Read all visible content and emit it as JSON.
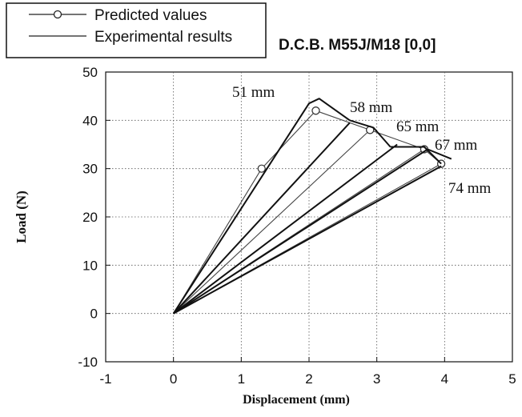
{
  "chart_data": {
    "type": "line",
    "title": "D.C.B. M55J/M18 [0,0]",
    "xlabel": "Displacement (mm)",
    "ylabel": "Load (N)",
    "xlim": [
      -1,
      5
    ],
    "ylim": [
      -10,
      50
    ],
    "x_ticks": [
      "-1",
      "0",
      "1",
      "2",
      "3",
      "4",
      "5"
    ],
    "y_ticks": [
      "-10",
      "0",
      "10",
      "20",
      "30",
      "40",
      "50"
    ],
    "grid": true,
    "legend_position": "top-left",
    "legend": [
      {
        "label": "Predicted values",
        "marker": "open-circle"
      },
      {
        "label": "Experimental results",
        "marker": "none"
      }
    ],
    "annotations": [
      "51 mm",
      "58 mm",
      "65 mm",
      "67 mm",
      "74 mm"
    ],
    "series": [
      {
        "name": "Predicted values",
        "segments": [
          {
            "x": [
              0,
              1.3,
              2.1
            ],
            "y": [
              0,
              30,
              42
            ]
          },
          {
            "x": [
              2.1,
              2.9,
              3.7,
              3.95
            ],
            "y": [
              42,
              38,
              34,
              31
            ]
          },
          {
            "x": [
              0,
              2.9
            ],
            "y": [
              0,
              38
            ]
          },
          {
            "x": [
              0,
              3.7
            ],
            "y": [
              0,
              34
            ]
          },
          {
            "x": [
              0,
              3.95
            ],
            "y": [
              0,
              31
            ]
          }
        ]
      },
      {
        "name": "Experimental results",
        "segments": [
          {
            "x": [
              0,
              2.0,
              2.15,
              2.6
            ],
            "y": [
              0,
              43.5,
              44.5,
              40
            ]
          },
          {
            "x": [
              2.6,
              2.95,
              3.2
            ],
            "y": [
              40,
              38.5,
              34.5
            ]
          },
          {
            "x": [
              0,
              2.6
            ],
            "y": [
              0,
              39.5
            ]
          },
          {
            "x": [
              3.2,
              3.7,
              3.95
            ],
            "y": [
              34.5,
              34.5,
              31
            ]
          },
          {
            "x": [
              0,
              3.3
            ],
            "y": [
              0,
              35
            ]
          },
          {
            "x": [
              0,
              3.75
            ],
            "y": [
              0,
              34
            ]
          },
          {
            "x": [
              3.75,
              4.1
            ],
            "y": [
              34,
              32
            ]
          },
          {
            "x": [
              0,
              3.95
            ],
            "y": [
              0,
              30.5
            ]
          }
        ]
      }
    ]
  }
}
